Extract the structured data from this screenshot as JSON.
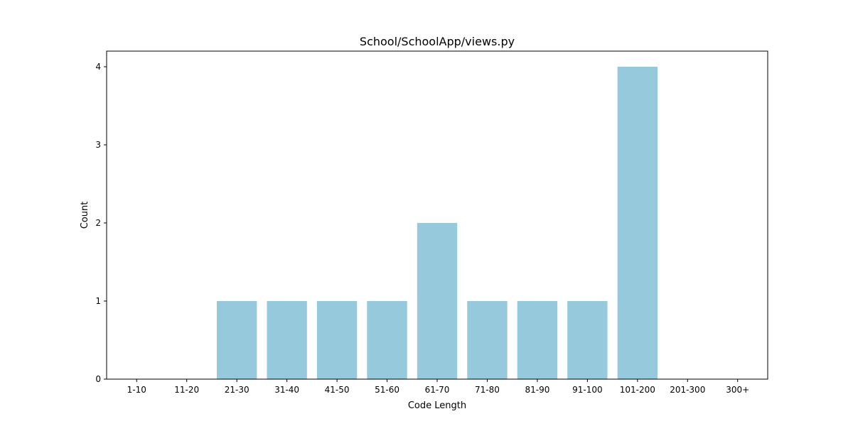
{
  "chart_data": {
    "type": "bar",
    "title": "School/SchoolApp/views.py",
    "xlabel": "Code Length",
    "ylabel": "Count",
    "categories": [
      "1-10",
      "11-20",
      "21-30",
      "31-40",
      "41-50",
      "51-60",
      "61-70",
      "71-80",
      "81-90",
      "91-100",
      "101-200",
      "201-300",
      "300+"
    ],
    "values": [
      0,
      0,
      1,
      1,
      1,
      1,
      2,
      1,
      1,
      1,
      4,
      0,
      0
    ],
    "yticks": [
      0,
      1,
      2,
      3,
      4
    ],
    "ylim": [
      0,
      4.2
    ],
    "grid": false,
    "legend": "none",
    "bar_color": "#96c9dc"
  }
}
